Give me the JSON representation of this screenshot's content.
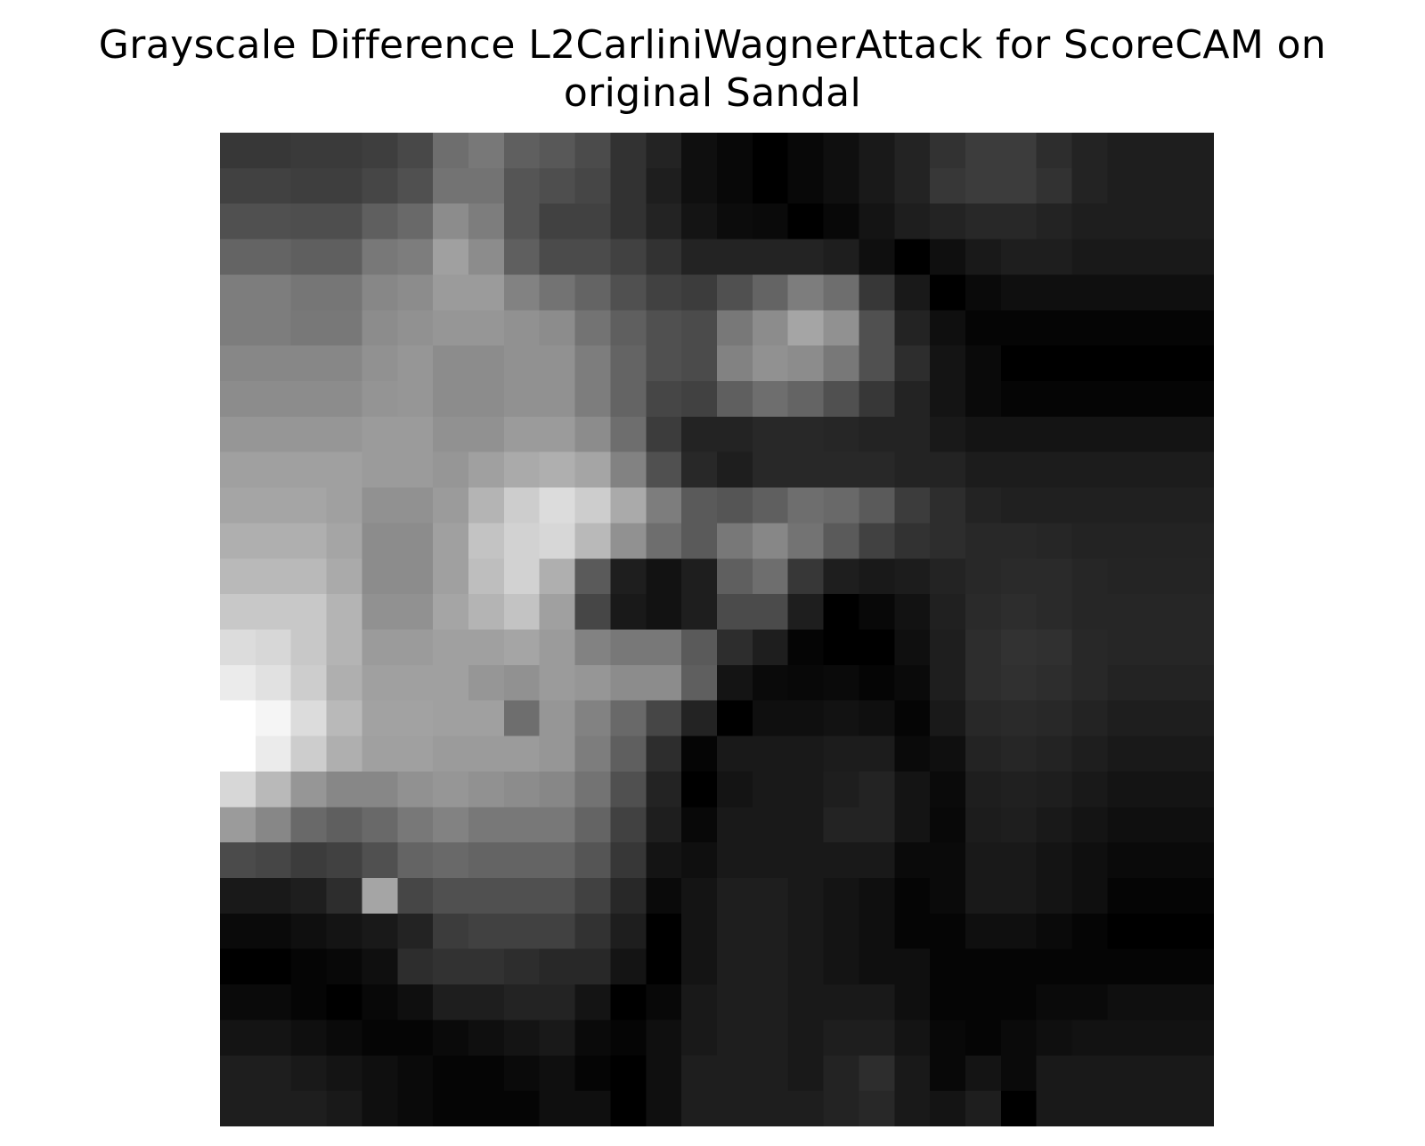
{
  "chart_data": {
    "type": "heatmap",
    "title_lines": [
      "Grayscale Difference L2CarliniWagnerAttack for ScoreCAM on",
      "original Sandal"
    ],
    "colormap": "gray",
    "axis": "off",
    "rows": 28,
    "cols": 28,
    "values": [
      [
        55,
        55,
        58,
        58,
        62,
        72,
        110,
        120,
        95,
        88,
        75,
        50,
        35,
        15,
        8,
        0,
        8,
        15,
        25,
        35,
        50,
        60,
        60,
        45,
        35,
        30,
        30,
        30
      ],
      [
        65,
        65,
        62,
        62,
        70,
        80,
        115,
        115,
        85,
        78,
        70,
        50,
        30,
        15,
        8,
        0,
        8,
        15,
        25,
        35,
        55,
        60,
        60,
        50,
        35,
        30,
        30,
        30
      ],
      [
        80,
        80,
        78,
        78,
        95,
        105,
        140,
        125,
        85,
        65,
        65,
        50,
        35,
        20,
        12,
        10,
        0,
        8,
        20,
        30,
        35,
        40,
        40,
        35,
        30,
        30,
        30,
        30
      ],
      [
        100,
        100,
        95,
        95,
        120,
        125,
        160,
        140,
        95,
        75,
        75,
        65,
        50,
        35,
        35,
        35,
        35,
        30,
        15,
        0,
        15,
        25,
        30,
        30,
        25,
        25,
        25,
        25
      ],
      [
        125,
        125,
        118,
        118,
        135,
        140,
        155,
        155,
        130,
        115,
        100,
        80,
        65,
        60,
        80,
        100,
        125,
        110,
        55,
        25,
        0,
        10,
        15,
        15,
        15,
        15,
        15,
        15
      ],
      [
        125,
        125,
        120,
        120,
        140,
        145,
        150,
        150,
        145,
        140,
        115,
        95,
        80,
        75,
        120,
        140,
        165,
        145,
        80,
        35,
        15,
        5,
        5,
        5,
        5,
        5,
        5,
        5
      ],
      [
        135,
        135,
        135,
        135,
        145,
        150,
        140,
        140,
        145,
        145,
        125,
        100,
        80,
        75,
        130,
        145,
        140,
        120,
        80,
        45,
        20,
        10,
        0,
        0,
        0,
        0,
        0,
        0
      ],
      [
        140,
        140,
        140,
        140,
        148,
        150,
        140,
        140,
        145,
        145,
        125,
        100,
        70,
        65,
        95,
        110,
        100,
        80,
        55,
        35,
        20,
        10,
        5,
        5,
        5,
        5,
        5,
        5
      ],
      [
        150,
        150,
        150,
        150,
        155,
        155,
        145,
        145,
        155,
        155,
        140,
        110,
        60,
        35,
        35,
        40,
        40,
        38,
        35,
        35,
        25,
        20,
        20,
        20,
        20,
        20,
        20,
        20
      ],
      [
        160,
        160,
        160,
        160,
        155,
        155,
        150,
        160,
        170,
        175,
        165,
        130,
        80,
        40,
        30,
        40,
        40,
        40,
        40,
        35,
        35,
        28,
        28,
        28,
        28,
        28,
        28,
        28
      ],
      [
        165,
        165,
        165,
        160,
        145,
        145,
        155,
        180,
        205,
        220,
        205,
        170,
        125,
        90,
        85,
        95,
        110,
        105,
        90,
        60,
        45,
        35,
        32,
        32,
        32,
        32,
        32,
        32
      ],
      [
        175,
        175,
        175,
        165,
        140,
        140,
        160,
        195,
        210,
        215,
        185,
        145,
        110,
        90,
        120,
        135,
        115,
        90,
        65,
        50,
        45,
        40,
        40,
        38,
        35,
        35,
        35,
        35
      ],
      [
        185,
        185,
        185,
        170,
        140,
        140,
        160,
        190,
        210,
        175,
        90,
        30,
        18,
        30,
        95,
        110,
        55,
        30,
        25,
        28,
        35,
        40,
        42,
        42,
        38,
        36,
        36,
        36
      ],
      [
        200,
        200,
        200,
        180,
        145,
        145,
        165,
        180,
        195,
        160,
        70,
        25,
        18,
        30,
        75,
        75,
        30,
        0,
        8,
        18,
        32,
        42,
        45,
        42,
        38,
        38,
        38,
        38
      ],
      [
        220,
        215,
        200,
        180,
        155,
        155,
        160,
        160,
        165,
        155,
        130,
        120,
        120,
        90,
        45,
        30,
        5,
        0,
        0,
        15,
        30,
        45,
        50,
        48,
        40,
        38,
        38,
        38
      ],
      [
        235,
        225,
        205,
        175,
        160,
        160,
        160,
        150,
        145,
        155,
        150,
        140,
        140,
        95,
        20,
        10,
        8,
        10,
        5,
        10,
        30,
        45,
        48,
        45,
        40,
        35,
        35,
        35
      ],
      [
        255,
        245,
        220,
        185,
        162,
        162,
        160,
        160,
        110,
        150,
        130,
        105,
        70,
        35,
        0,
        15,
        15,
        18,
        15,
        5,
        25,
        40,
        42,
        40,
        35,
        30,
        30,
        30
      ],
      [
        255,
        235,
        205,
        175,
        160,
        160,
        155,
        155,
        155,
        150,
        125,
        95,
        45,
        5,
        25,
        25,
        25,
        28,
        28,
        10,
        15,
        35,
        38,
        35,
        30,
        25,
        25,
        25
      ],
      [
        215,
        185,
        150,
        135,
        135,
        145,
        150,
        145,
        140,
        135,
        115,
        80,
        35,
        0,
        20,
        25,
        25,
        30,
        35,
        20,
        10,
        30,
        32,
        30,
        25,
        20,
        20,
        20
      ],
      [
        155,
        135,
        105,
        95,
        105,
        120,
        130,
        120,
        120,
        120,
        100,
        65,
        30,
        8,
        25,
        25,
        25,
        35,
        35,
        20,
        8,
        28,
        30,
        25,
        20,
        15,
        15,
        15
      ],
      [
        75,
        70,
        60,
        65,
        80,
        100,
        105,
        100,
        100,
        100,
        85,
        55,
        20,
        15,
        25,
        25,
        25,
        25,
        25,
        10,
        10,
        25,
        25,
        20,
        15,
        10,
        10,
        10
      ],
      [
        25,
        25,
        30,
        45,
        165,
        70,
        80,
        80,
        80,
        80,
        65,
        40,
        10,
        20,
        30,
        30,
        25,
        20,
        15,
        5,
        10,
        25,
        25,
        20,
        15,
        5,
        5,
        5
      ],
      [
        10,
        10,
        15,
        20,
        25,
        35,
        60,
        65,
        65,
        65,
        50,
        30,
        0,
        20,
        30,
        30,
        25,
        20,
        15,
        5,
        5,
        15,
        15,
        10,
        5,
        0,
        0,
        0
      ],
      [
        0,
        0,
        5,
        8,
        15,
        45,
        50,
        50,
        45,
        40,
        40,
        20,
        0,
        20,
        30,
        30,
        25,
        20,
        15,
        15,
        5,
        5,
        5,
        5,
        5,
        5,
        5,
        5
      ],
      [
        10,
        10,
        5,
        0,
        8,
        15,
        30,
        30,
        35,
        35,
        20,
        0,
        8,
        25,
        30,
        30,
        25,
        25,
        25,
        15,
        5,
        5,
        5,
        10,
        10,
        15,
        15,
        15
      ],
      [
        20,
        20,
        15,
        10,
        5,
        5,
        10,
        15,
        20,
        25,
        10,
        5,
        15,
        25,
        30,
        30,
        25,
        30,
        30,
        20,
        8,
        5,
        10,
        15,
        18,
        18,
        18,
        18
      ],
      [
        30,
        30,
        25,
        20,
        15,
        10,
        5,
        5,
        10,
        15,
        5,
        0,
        15,
        30,
        30,
        30,
        25,
        35,
        45,
        25,
        8,
        20,
        10,
        25,
        25,
        25,
        25,
        25
      ],
      [
        30,
        30,
        30,
        25,
        15,
        10,
        5,
        5,
        5,
        15,
        15,
        0,
        15,
        30,
        30,
        30,
        30,
        35,
        40,
        25,
        20,
        30,
        0,
        25,
        25,
        25,
        25,
        25
      ]
    ],
    "vmin": 0,
    "vmax": 255
  }
}
